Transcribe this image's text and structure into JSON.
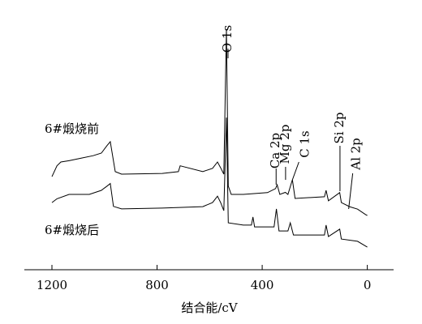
{
  "chart_data": {
    "type": "line",
    "x_label": "结合能/cV",
    "xlim": [
      1305,
      -100
    ],
    "xticks": [
      1200,
      800,
      400,
      0
    ],
    "ylim": [
      0,
      100
    ],
    "series": [
      {
        "name": "6#煅烧前",
        "color": "#000000",
        "x": [
          1200,
          1181,
          1166,
          1135,
          1089,
          1043,
          1012,
          990,
          978,
          959,
          935,
          780,
          719,
          712,
          626,
          589,
          570,
          558,
          546,
          536,
          529,
          518,
          472,
          380,
          349,
          343,
          333,
          312,
          302,
          285,
          275,
          163,
          157,
          148,
          105,
          99,
          68,
          37,
          6,
          0
        ],
        "values": [
          36.7,
          41,
          42.5,
          43,
          44,
          45,
          46,
          49,
          50.5,
          38.7,
          37.7,
          38,
          38.7,
          41,
          38.7,
          40,
          42.5,
          40.2,
          37.7,
          95,
          33,
          29.7,
          29.7,
          30.4,
          32,
          33.5,
          29.7,
          30.5,
          29.7,
          35.5,
          28.1,
          28.8,
          31.3,
          27.2,
          30.4,
          26.5,
          24.9,
          23.9,
          21.7,
          21.4
        ]
      },
      {
        "name": "6#煅烧后",
        "color": "#000000",
        "x": [
          1200,
          1181,
          1135,
          1058,
          1012,
          990,
          978,
          966,
          935,
          780,
          626,
          589,
          570,
          558,
          546,
          536,
          529,
          472,
          441,
          435,
          429,
          355,
          346,
          336,
          302,
          293,
          281,
          163,
          157,
          148,
          105,
          99,
          37,
          0
        ],
        "values": [
          26.5,
          28,
          29.7,
          29.7,
          31.3,
          33,
          34,
          25,
          24,
          24.3,
          24.9,
          26.5,
          29,
          26.5,
          23.3,
          60,
          18.5,
          17.6,
          17.6,
          20.8,
          16.9,
          16.9,
          24,
          15.3,
          15.3,
          18.5,
          13.7,
          13.7,
          17.6,
          13.1,
          16,
          12.1,
          11.2,
          8.9
        ]
      }
    ],
    "annotations": [
      {
        "text": "O 1s",
        "x": 530
      },
      {
        "text": "Ca 2p",
        "x": 347
      },
      {
        "text": "Mg 2p",
        "x": 311
      },
      {
        "text": "C 1s",
        "x": 285
      },
      {
        "text": "Si 2p",
        "x": 104
      },
      {
        "text": "Al 2p",
        "x": 71
      }
    ]
  }
}
